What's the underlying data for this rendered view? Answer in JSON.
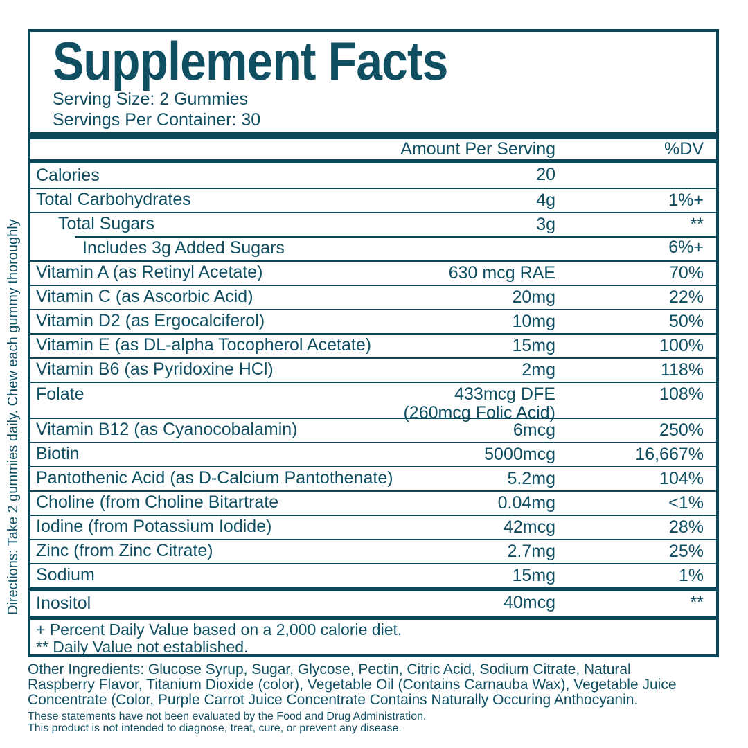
{
  "colors": {
    "teal_text": "#0f4f61",
    "teal_line": "#0b4759"
  },
  "label": {
    "title": "Supplement Facts",
    "serving_size": "Serving Size: 2 Gummies",
    "servings_per_container": "Servings Per Container: 30",
    "columns": {
      "amount": "Amount Per Serving",
      "dv": "%DV"
    },
    "rows": [
      {
        "name": "Calories",
        "amount": "20",
        "dv": "",
        "sep": "none"
      },
      {
        "name": "Total Carbohydrates",
        "amount": "4g",
        "dv": "1%+"
      },
      {
        "name": "Total Sugars",
        "amount": "3g",
        "dv": "**",
        "indent": 1
      },
      {
        "name": "Includes 3g Added Sugars",
        "amount": "",
        "dv": "6%+",
        "indent": 2,
        "sep": "indent"
      },
      {
        "name": "Vitamin A (as Retinyl Acetate)",
        "amount": "630 mcg RAE",
        "dv": "70%"
      },
      {
        "name": "Vitamin C (as Ascorbic Acid)",
        "amount": "20mg",
        "dv": "22%"
      },
      {
        "name": "Vitamin D2 (as Ergocalciferol)",
        "amount": "10mg",
        "dv": "50%"
      },
      {
        "name": "Vitamin E (as DL-alpha Tocopherol Acetate)",
        "amount": "15mg",
        "dv": "100%"
      },
      {
        "name": "Vitamin B6 (as Pyridoxine HCl)",
        "amount": "2mg",
        "dv": "118%"
      },
      {
        "name": "Folate",
        "amount": "433mcg DFE",
        "amount2": "(260mcg Folic Acid)",
        "dv": "108%"
      },
      {
        "name": "Vitamin B12 (as Cyanocobalamin)",
        "amount": "6mcg",
        "dv": "250%"
      },
      {
        "name": "Biotin",
        "amount": "5000mcg",
        "dv": "16,667%"
      },
      {
        "name": "Pantothenic Acid (as D-Calcium Pantothenate)",
        "amount": "5.2mg",
        "dv": "104%"
      },
      {
        "name": "Choline (from Choline Bitartrate",
        "amount": "0.04mg",
        "dv": "<1%"
      },
      {
        "name": "Iodine (from Potassium Iodide)",
        "amount": "42mcg",
        "dv": "28%"
      },
      {
        "name": "Zinc (from Zinc Citrate)",
        "amount": "2.7mg",
        "dv": "25%"
      },
      {
        "name": "Sodium",
        "amount": "15mg",
        "dv": "1%"
      },
      {
        "name": "Inositol",
        "amount": "40mcg",
        "dv": "**",
        "sep": "thick"
      }
    ],
    "footnotes": [
      "+ Percent Daily Value based on a 2,000 calorie diet.",
      "** Daily Value not established."
    ]
  },
  "directions": "Directions: Take 2 gummies daily. Chew each gummy thoroughly",
  "other_ingredients_lines": [
    "Other Ingredients: Glucose Syrup, Sugar, Glycose, Pectin, Citric Acid, Sodium Citrate, Natural",
    "Raspberry Flavor, Titanium Dioxide (color), Vegetable Oil (Contains Carnauba Wax), Vegetable Juice",
    "Concentrate (Color, Purple Carrot Juice Concentrate Contains Naturally Occuring Anthocyanin."
  ],
  "disclaimer_lines": [
    "These statements have not been evaluated by the Food and Drug Administration.",
    "This product is not intended to diagnose, treat, cure, or prevent any disease."
  ]
}
